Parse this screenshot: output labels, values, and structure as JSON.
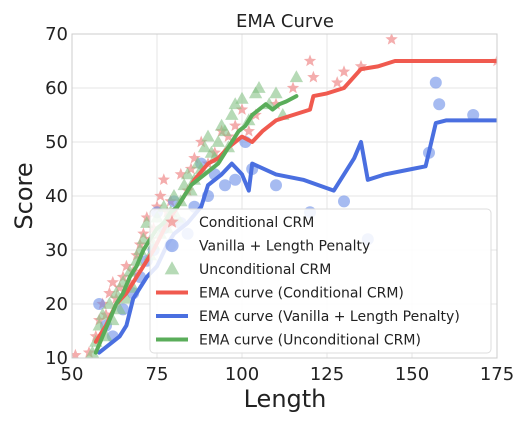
{
  "chart_data": {
    "type": "scatter",
    "title": "EMA Curve",
    "xlabel": "Length",
    "ylabel": "Score",
    "xlim": [
      50,
      175
    ],
    "ylim": [
      10,
      70
    ],
    "xticks": [
      50,
      75,
      100,
      125,
      150,
      175
    ],
    "yticks": [
      10,
      20,
      30,
      40,
      50,
      60,
      70
    ],
    "grid": true,
    "legend_position": "lower-right",
    "scatter_series": [
      {
        "name": "Conditional CRM",
        "marker": "star",
        "color": "#f08a8a",
        "points": [
          [
            51,
            10.5
          ],
          [
            55,
            11
          ],
          [
            57,
            14
          ],
          [
            58,
            17
          ],
          [
            59,
            20
          ],
          [
            60,
            18
          ],
          [
            61,
            22
          ],
          [
            62,
            24
          ],
          [
            63,
            21
          ],
          [
            64,
            23
          ],
          [
            65,
            25
          ],
          [
            66,
            27
          ],
          [
            67,
            24
          ],
          [
            68,
            26
          ],
          [
            69,
            29
          ],
          [
            70,
            31
          ],
          [
            71,
            33
          ],
          [
            72,
            36
          ],
          [
            73,
            32
          ],
          [
            74,
            34
          ],
          [
            75,
            38
          ],
          [
            76,
            40
          ],
          [
            77,
            43
          ],
          [
            78,
            37
          ],
          [
            79,
            39
          ],
          [
            80,
            35
          ],
          [
            82,
            44
          ],
          [
            84,
            41
          ],
          [
            85,
            45
          ],
          [
            86,
            47
          ],
          [
            88,
            50
          ],
          [
            90,
            46
          ],
          [
            92,
            48
          ],
          [
            94,
            52
          ],
          [
            96,
            51
          ],
          [
            98,
            53
          ],
          [
            100,
            56
          ],
          [
            102,
            52
          ],
          [
            104,
            55
          ],
          [
            110,
            57
          ],
          [
            115,
            60
          ],
          [
            120,
            65
          ],
          [
            121,
            62
          ],
          [
            128,
            61
          ],
          [
            130,
            63
          ],
          [
            135,
            64
          ],
          [
            144,
            69
          ],
          [
            175,
            65
          ]
        ]
      },
      {
        "name": "Vanilla + Length Penalty",
        "marker": "circle",
        "color": "#6a8ee8",
        "points": [
          [
            58,
            20
          ],
          [
            60,
            16
          ],
          [
            62,
            14
          ],
          [
            65,
            19
          ],
          [
            68,
            22
          ],
          [
            70,
            25
          ],
          [
            72,
            28
          ],
          [
            74,
            30
          ],
          [
            75,
            37
          ],
          [
            77,
            34
          ],
          [
            79,
            31
          ],
          [
            80,
            39
          ],
          [
            82,
            35
          ],
          [
            84,
            33
          ],
          [
            86,
            38
          ],
          [
            88,
            46
          ],
          [
            90,
            40
          ],
          [
            92,
            44
          ],
          [
            95,
            42
          ],
          [
            98,
            43
          ],
          [
            101,
            50
          ],
          [
            103,
            45
          ],
          [
            110,
            42
          ],
          [
            120,
            37
          ],
          [
            130,
            39
          ],
          [
            137,
            32
          ],
          [
            155,
            48
          ],
          [
            157,
            61
          ],
          [
            158,
            57
          ],
          [
            168,
            55
          ]
        ]
      },
      {
        "name": "Unconditional CRM",
        "marker": "triangle",
        "color": "#86c286",
        "points": [
          [
            56,
            11
          ],
          [
            57,
            13
          ],
          [
            58,
            16
          ],
          [
            59,
            18
          ],
          [
            60,
            14
          ],
          [
            61,
            20
          ],
          [
            62,
            17
          ],
          [
            63,
            22
          ],
          [
            64,
            19
          ],
          [
            65,
            24
          ],
          [
            66,
            21
          ],
          [
            67,
            26
          ],
          [
            68,
            23
          ],
          [
            69,
            28
          ],
          [
            70,
            30
          ],
          [
            71,
            32
          ],
          [
            72,
            35
          ],
          [
            73,
            29
          ],
          [
            74,
            31
          ],
          [
            75,
            36
          ],
          [
            76,
            33
          ],
          [
            77,
            38
          ],
          [
            78,
            34
          ],
          [
            79,
            37
          ],
          [
            80,
            40
          ],
          [
            81,
            36
          ],
          [
            82,
            39
          ],
          [
            83,
            42
          ],
          [
            84,
            44
          ],
          [
            85,
            41
          ],
          [
            86,
            43
          ],
          [
            87,
            46
          ],
          [
            88,
            45
          ],
          [
            89,
            49
          ],
          [
            90,
            51
          ],
          [
            91,
            48
          ],
          [
            92,
            47
          ],
          [
            93,
            50
          ],
          [
            94,
            53
          ],
          [
            95,
            52
          ],
          [
            96,
            49
          ],
          [
            97,
            55
          ],
          [
            98,
            57
          ],
          [
            100,
            58
          ],
          [
            102,
            54
          ],
          [
            104,
            59
          ],
          [
            105,
            60
          ],
          [
            108,
            57
          ],
          [
            110,
            59
          ],
          [
            112,
            55
          ],
          [
            116,
            62
          ]
        ]
      }
    ],
    "series": [
      {
        "name": "EMA curve (Conditional CRM)",
        "color": "#f05a4f",
        "points": [
          [
            57,
            13
          ],
          [
            60,
            16
          ],
          [
            63,
            20
          ],
          [
            66,
            22
          ],
          [
            70,
            26
          ],
          [
            74,
            30
          ],
          [
            78,
            35
          ],
          [
            82,
            39
          ],
          [
            86,
            43
          ],
          [
            90,
            46
          ],
          [
            93,
            47
          ],
          [
            96,
            49
          ],
          [
            100,
            51
          ],
          [
            103,
            50
          ],
          [
            106,
            52
          ],
          [
            110,
            54
          ],
          [
            115,
            55
          ],
          [
            120,
            56
          ],
          [
            121,
            58.5
          ],
          [
            125,
            59
          ],
          [
            130,
            60
          ],
          [
            135,
            63.5
          ],
          [
            140,
            64
          ],
          [
            145,
            65
          ],
          [
            160,
            65
          ],
          [
            175,
            65
          ]
        ]
      },
      {
        "name": "EMA curve (Vanilla + Length Penalty)",
        "color": "#4a6fe0",
        "points": [
          [
            58,
            11
          ],
          [
            60,
            12
          ],
          [
            62,
            13
          ],
          [
            64,
            14
          ],
          [
            66,
            16
          ],
          [
            68,
            21
          ],
          [
            70,
            23
          ],
          [
            72,
            25
          ],
          [
            75,
            27
          ],
          [
            78,
            31
          ],
          [
            80,
            33
          ],
          [
            84,
            35
          ],
          [
            88,
            38
          ],
          [
            90,
            42
          ],
          [
            94,
            44
          ],
          [
            97,
            46
          ],
          [
            100,
            44
          ],
          [
            102,
            41
          ],
          [
            103,
            46
          ],
          [
            110,
            44
          ],
          [
            118,
            43
          ],
          [
            127,
            41
          ],
          [
            133,
            47
          ],
          [
            135,
            50
          ],
          [
            137,
            43
          ],
          [
            142,
            44
          ],
          [
            150,
            45
          ],
          [
            154,
            45.5
          ],
          [
            157,
            53.5
          ],
          [
            160,
            54
          ],
          [
            168,
            54
          ],
          [
            175,
            54
          ]
        ]
      },
      {
        "name": "EMA curve (Unconditional CRM)",
        "color": "#5aad5a",
        "points": [
          [
            57,
            11
          ],
          [
            59,
            14
          ],
          [
            61,
            17
          ],
          [
            63,
            20
          ],
          [
            65,
            22
          ],
          [
            67,
            25
          ],
          [
            69,
            27
          ],
          [
            71,
            30
          ],
          [
            73,
            32
          ],
          [
            75,
            34
          ],
          [
            77,
            35
          ],
          [
            79,
            37
          ],
          [
            81,
            38
          ],
          [
            83,
            40
          ],
          [
            85,
            42
          ],
          [
            87,
            43
          ],
          [
            89,
            44
          ],
          [
            91,
            45
          ],
          [
            93,
            46
          ],
          [
            95,
            48
          ],
          [
            97,
            50
          ],
          [
            99,
            52
          ],
          [
            101,
            53
          ],
          [
            103,
            55
          ],
          [
            105,
            56
          ],
          [
            107,
            57
          ],
          [
            109,
            56
          ],
          [
            111,
            57
          ],
          [
            113,
            57.5
          ],
          [
            116,
            58.5
          ]
        ]
      }
    ]
  }
}
